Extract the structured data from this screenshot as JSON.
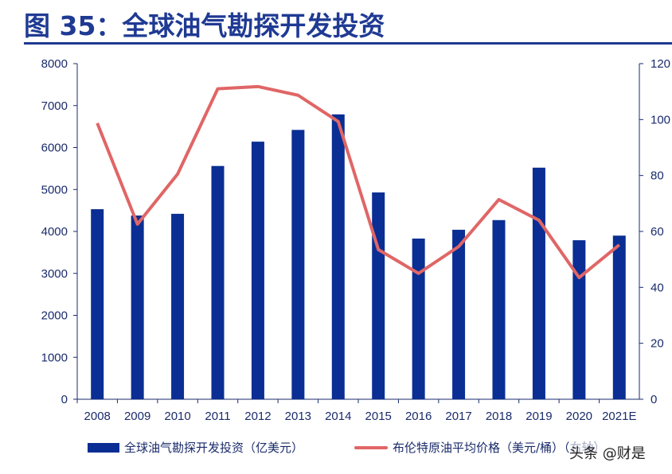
{
  "title": "图 35：全球油气勘探开发投资",
  "watermark": "头条 @财是",
  "chart_data": {
    "type": "bar+line",
    "categories": [
      "2008",
      "2009",
      "2010",
      "2011",
      "2012",
      "2013",
      "2014",
      "2015",
      "2016",
      "2017",
      "2018",
      "2019",
      "2020",
      "2021E"
    ],
    "series": [
      {
        "name": "全球油气勘探开发投资（亿美元）",
        "type": "bar",
        "axis": "left",
        "color": "#0a2e93",
        "values": [
          4530,
          4380,
          4420,
          5560,
          6140,
          6420,
          6790,
          4930,
          3830,
          4040,
          4270,
          5520,
          3790,
          3900
        ]
      },
      {
        "name": "布伦特原油平均价格（美元/桶）（右轴）",
        "type": "line",
        "axis": "right",
        "color": "#e06666",
        "values": [
          98.7,
          62.6,
          80.5,
          111,
          111.8,
          108.7,
          99.3,
          53.5,
          45,
          54.6,
          71.4,
          64,
          43.5,
          55.2
        ]
      }
    ],
    "left_axis": {
      "ylim": [
        0,
        8000
      ],
      "ticks": [
        "0",
        "1000",
        "2000",
        "3000",
        "4000",
        "5000",
        "6000",
        "7000",
        "8000"
      ]
    },
    "right_axis": {
      "ylim": [
        0,
        120
      ],
      "ticks": [
        "0",
        "20",
        "40",
        "60",
        "80",
        "100",
        "120"
      ]
    },
    "grid": false,
    "legend": "bottom"
  }
}
